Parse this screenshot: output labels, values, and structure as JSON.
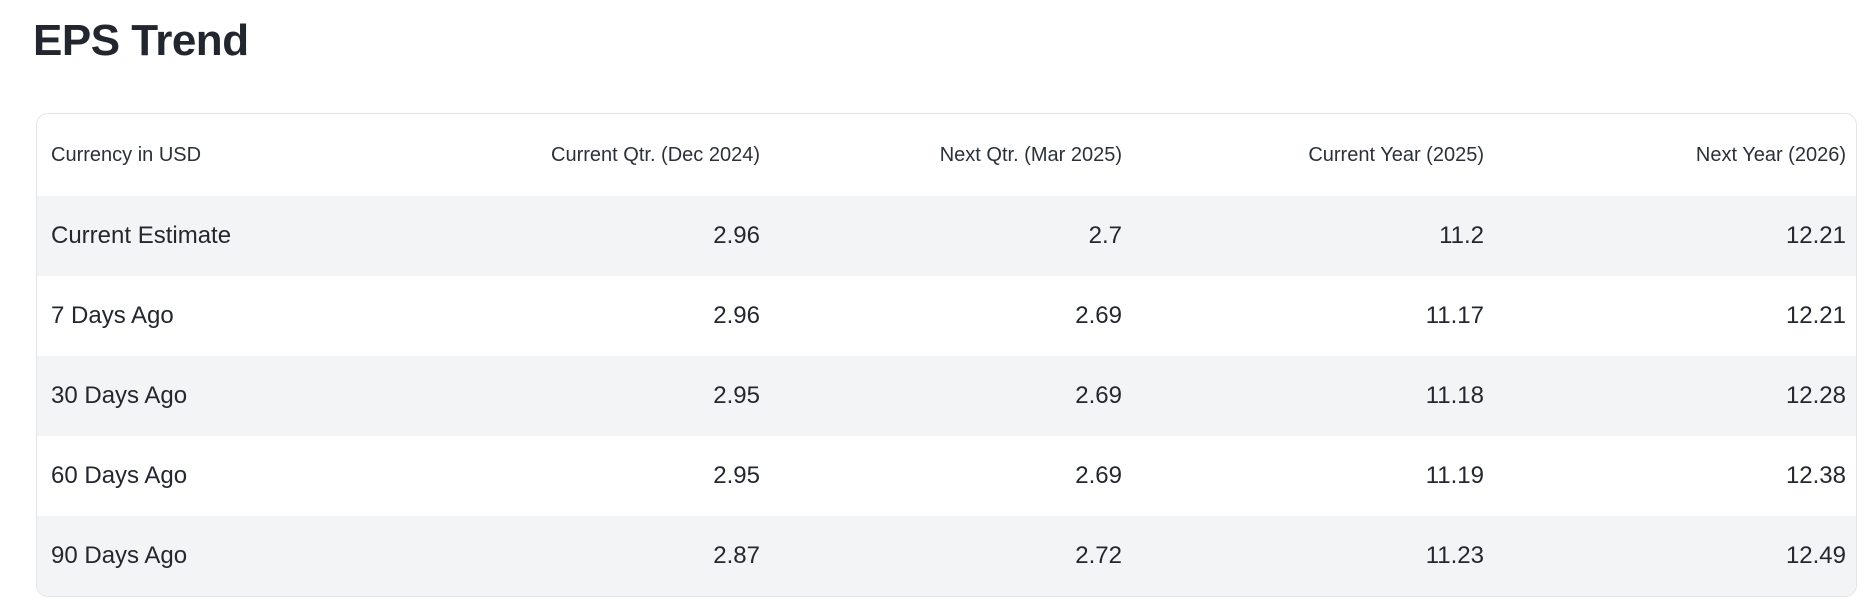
{
  "page": {
    "title": "EPS Trend"
  },
  "colors": {
    "background": "#ffffff",
    "card_border": "#e2e5e9",
    "stripe_row": "#f3f4f6",
    "text": "#23272f"
  },
  "table": {
    "columns": [
      {
        "label": "Currency in USD",
        "align": "left"
      },
      {
        "label": "Current Qtr. (Dec 2024)",
        "align": "right"
      },
      {
        "label": "Next Qtr. (Mar 2025)",
        "align": "right"
      },
      {
        "label": "Current Year (2025)",
        "align": "right"
      },
      {
        "label": "Next Year (2026)",
        "align": "right"
      }
    ],
    "rows": [
      {
        "label": "Current Estimate",
        "values": [
          "2.96",
          "2.7",
          "11.2",
          "12.21"
        ]
      },
      {
        "label": "7 Days Ago",
        "values": [
          "2.96",
          "2.69",
          "11.17",
          "12.21"
        ]
      },
      {
        "label": "30 Days Ago",
        "values": [
          "2.95",
          "2.69",
          "11.18",
          "12.28"
        ]
      },
      {
        "label": "60 Days Ago",
        "values": [
          "2.95",
          "2.69",
          "11.19",
          "12.38"
        ]
      },
      {
        "label": "90 Days Ago",
        "values": [
          "2.87",
          "2.72",
          "11.23",
          "12.49"
        ]
      }
    ]
  },
  "chart_data": {
    "type": "table",
    "title": "EPS Trend",
    "categories": [
      "Current Qtr. (Dec 2024)",
      "Next Qtr. (Mar 2025)",
      "Current Year (2025)",
      "Next Year (2026)"
    ],
    "series": [
      {
        "name": "Current Estimate",
        "values": [
          2.96,
          2.7,
          11.2,
          12.21
        ]
      },
      {
        "name": "7 Days Ago",
        "values": [
          2.96,
          2.69,
          11.17,
          12.21
        ]
      },
      {
        "name": "30 Days Ago",
        "values": [
          2.95,
          2.69,
          11.18,
          12.28
        ]
      },
      {
        "name": "60 Days Ago",
        "values": [
          2.95,
          2.69,
          11.19,
          12.38
        ]
      },
      {
        "name": "90 Days Ago",
        "values": [
          2.87,
          2.72,
          11.23,
          12.49
        ]
      }
    ]
  }
}
